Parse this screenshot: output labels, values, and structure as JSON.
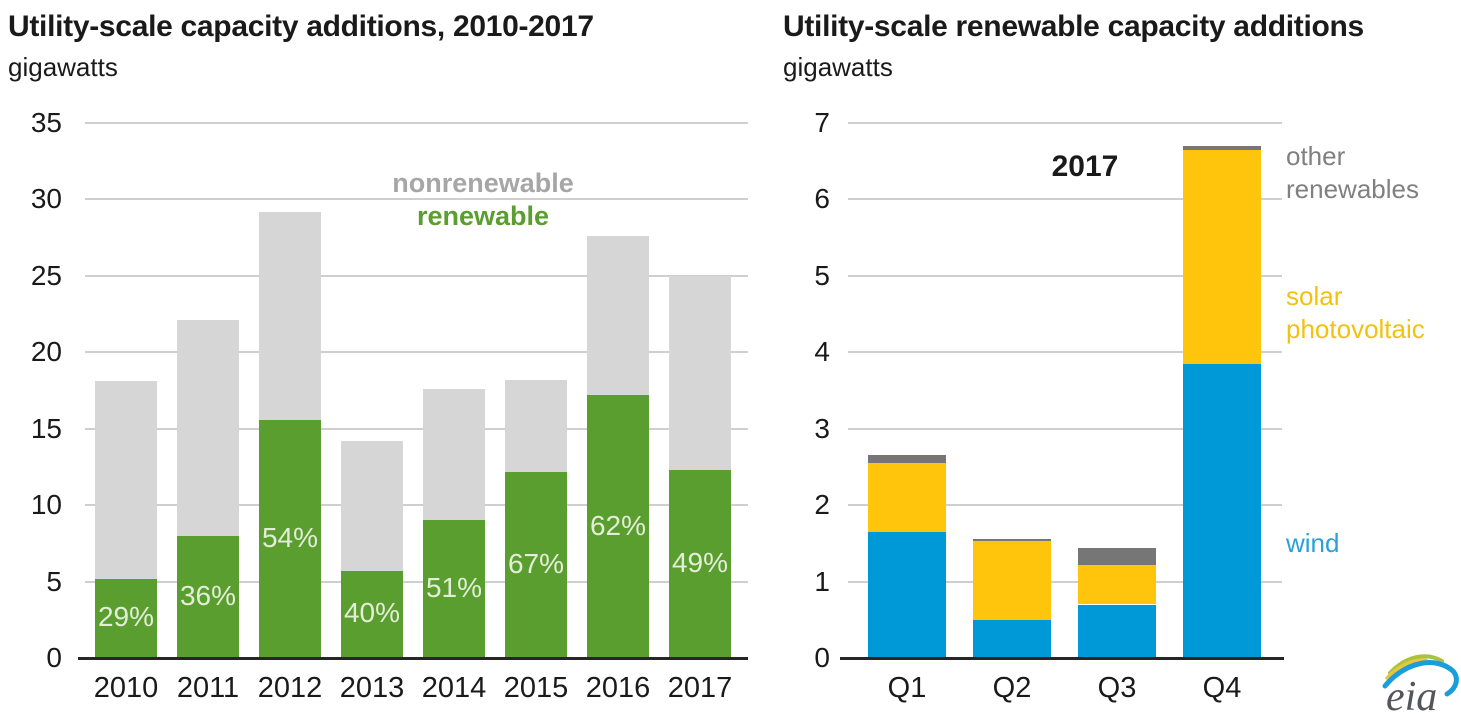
{
  "chart_data": [
    {
      "type": "bar",
      "stacked": true,
      "title": "Utility-scale capacity additions, 2010-2017",
      "subtitle": "gigawatts",
      "categories": [
        "2010",
        "2011",
        "2012",
        "2013",
        "2014",
        "2015",
        "2016",
        "2017"
      ],
      "series": [
        {
          "name": "renewable",
          "color": "#5a9e2f",
          "values": [
            5.2,
            8.0,
            15.6,
            5.7,
            9.0,
            12.2,
            17.2,
            12.3
          ]
        },
        {
          "name": "nonrenewable",
          "color": "#d6d6d6",
          "values": [
            12.9,
            14.1,
            13.6,
            8.5,
            8.6,
            6.0,
            10.4,
            12.7
          ]
        }
      ],
      "bar_labels": {
        "on_series": "renewable",
        "labels": [
          "29%",
          "36%",
          "54%",
          "40%",
          "51%",
          "67%",
          "62%",
          "49%"
        ],
        "color": "#e3edd7"
      },
      "ylim": [
        0,
        35
      ],
      "yticks": [
        "0",
        "5",
        "10",
        "15",
        "20",
        "25",
        "30",
        "35"
      ],
      "grid": true,
      "legend_position": "top-right-inside",
      "legend": [
        {
          "label": "nonrenewable",
          "color": "#a6a6a6"
        },
        {
          "label": "renewable",
          "color": "#5a9e2f"
        }
      ]
    },
    {
      "type": "bar",
      "stacked": true,
      "title": "Utility-scale renewable capacity additions",
      "subtitle": "gigawatts",
      "annotation": "2017",
      "categories": [
        "Q1",
        "Q2",
        "Q3",
        "Q4"
      ],
      "series": [
        {
          "name": "wind",
          "color": "#0099d8",
          "values": [
            1.65,
            0.5,
            0.7,
            3.85
          ]
        },
        {
          "name": "solar photovoltaic",
          "color": "#ffc40c",
          "values": [
            0.9,
            1.03,
            0.52,
            2.8
          ]
        },
        {
          "name": "other renewables",
          "color": "#767676",
          "values": [
            0.1,
            0.03,
            0.22,
            0.05
          ]
        }
      ],
      "ylim": [
        0,
        7
      ],
      "yticks": [
        "0",
        "1",
        "2",
        "3",
        "4",
        "5",
        "6",
        "7"
      ],
      "grid": true,
      "legend_position": "right-outside",
      "side_labels": [
        {
          "text": "other renewables",
          "color": "#808080"
        },
        {
          "text": "solar photovoltaic",
          "color": "#f2c20d"
        },
        {
          "text": "wind",
          "color": "#29a0d8"
        }
      ]
    }
  ],
  "logo": {
    "text": "eia"
  }
}
